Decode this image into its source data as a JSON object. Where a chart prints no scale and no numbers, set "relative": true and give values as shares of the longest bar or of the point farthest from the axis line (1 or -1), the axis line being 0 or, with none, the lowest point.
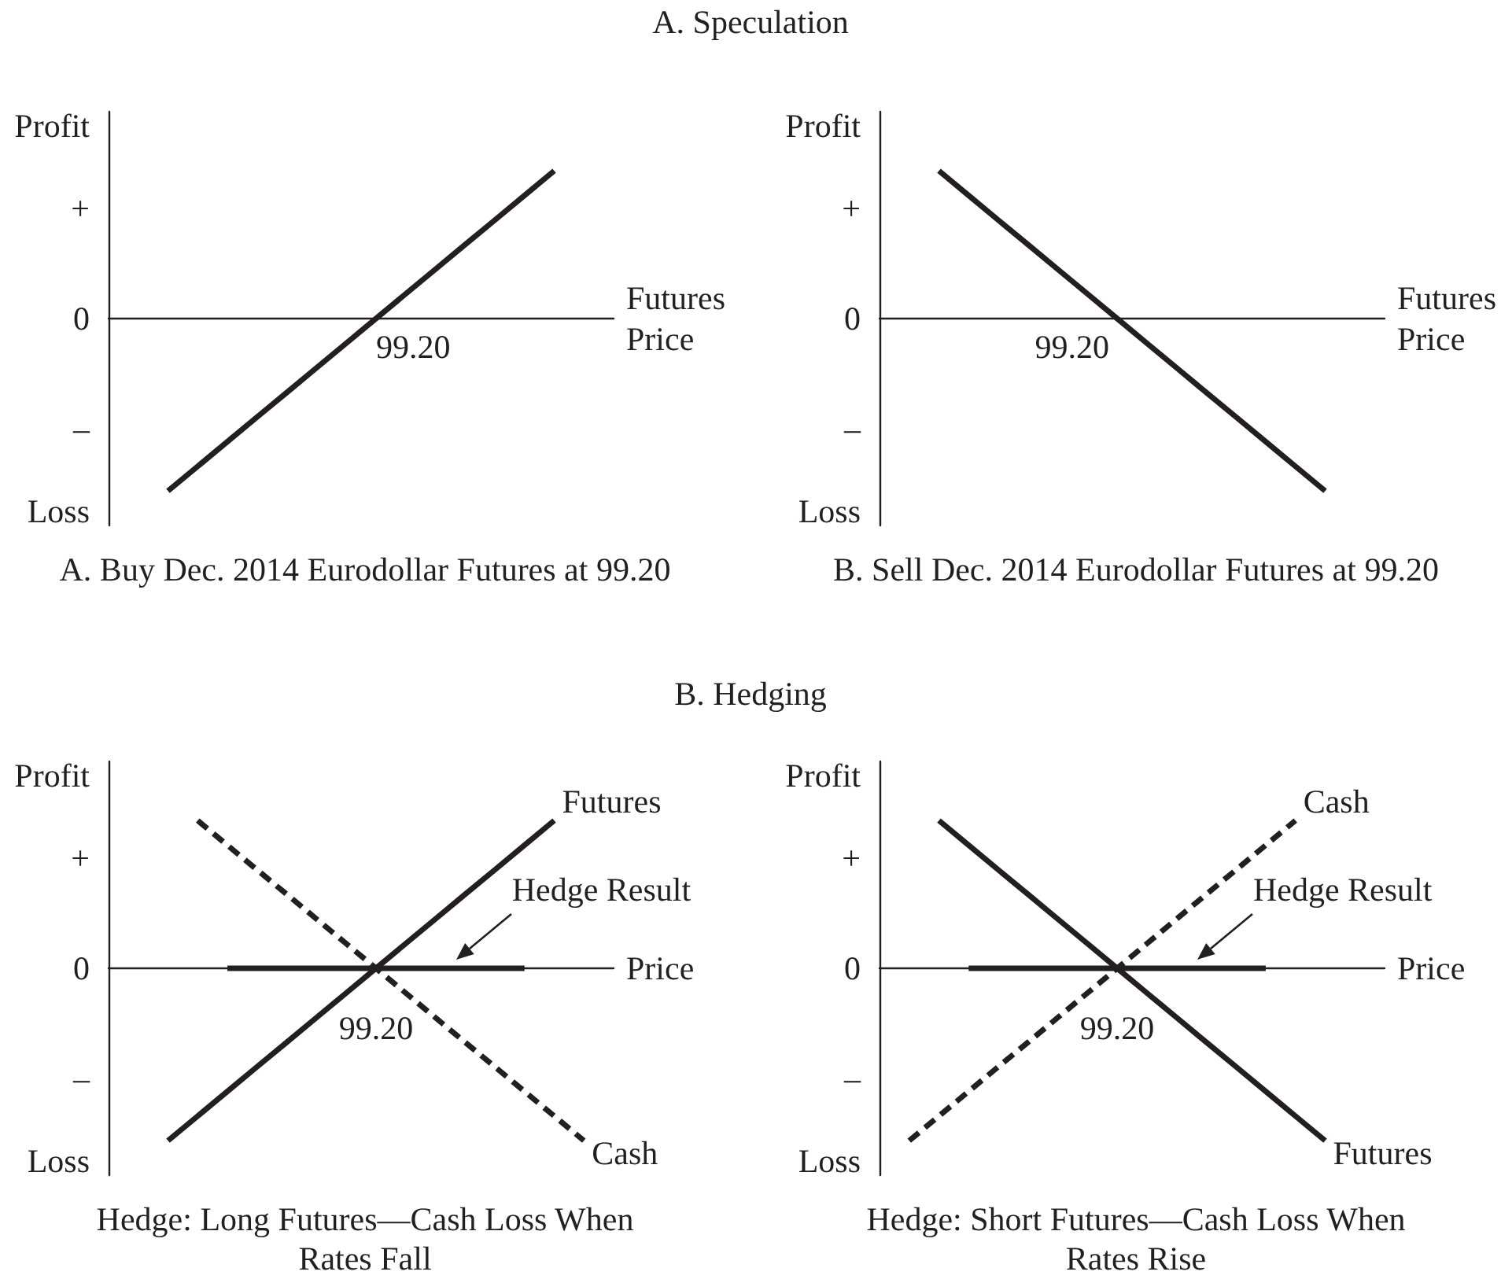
{
  "chart_data": [
    {
      "type": "other",
      "title": "A. Speculation"
    },
    {
      "type": "line",
      "title": "A. Buy Dec. 2014 Eurodollar Futures at 99.20",
      "annotations": [
        "Profit",
        "+",
        "0",
        "–",
        "Loss",
        "99.20"
      ],
      "xlabel": "Futures Price",
      "relative": true,
      "categories": [
        null,
        null,
        null,
        null,
        null,
        null,
        null,
        null,
        null,
        null,
        null,
        null,
        null,
        null,
        null,
        null,
        null,
        null
      ],
      "series": [
        {
          "color": "#231f20",
          "line_style": "solid",
          "values": [
            null,
            null,
            -1,
            -0.857,
            -0.714,
            -0.571,
            -0.429,
            -0.286,
            -0.143,
            0,
            0.143,
            0.286,
            0.429,
            0.571,
            0.714,
            0.857,
            null,
            null
          ]
        }
      ]
    },
    {
      "type": "line",
      "title": "B. Sell Dec. 2014 Eurodollar Futures at 99.20",
      "annotations": [
        "Profit",
        "+",
        "0",
        "–",
        "Loss",
        "99.20"
      ],
      "xlabel": "Futures Price",
      "relative": true,
      "categories": [
        null,
        null,
        null,
        null,
        null,
        null,
        null,
        null,
        null,
        null,
        null,
        null,
        null,
        null,
        null,
        null,
        null,
        null
      ],
      "series": [
        {
          "color": "#231f20",
          "line_style": "solid",
          "values": [
            null,
            null,
            0.857,
            0.714,
            0.571,
            0.429,
            0.286,
            0.143,
            0,
            -0.143,
            -0.286,
            -0.429,
            -0.571,
            -0.714,
            -0.857,
            -1,
            null,
            null
          ]
        }
      ]
    },
    {
      "type": "other",
      "title": "B. Hedging"
    },
    {
      "type": "line",
      "title": "Hedge: Long Futures—Cash Loss When Rates Fall",
      "annotations": [
        "Profit",
        "+",
        "0",
        "–",
        "Loss",
        "99.20"
      ],
      "xlabel": "Price",
      "relative": true,
      "categories": [
        null,
        null,
        null,
        null,
        null,
        null,
        null,
        null,
        null,
        null,
        null,
        null,
        null,
        null,
        null,
        null,
        null,
        null
      ],
      "series": [
        {
          "name": "Futures",
          "color": "#231f20",
          "line_style": "solid",
          "values": [
            null,
            null,
            -1,
            -0.857,
            -0.714,
            -0.571,
            -0.429,
            -0.286,
            -0.143,
            0,
            0.143,
            0.286,
            0.429,
            0.571,
            0.714,
            0.857,
            null,
            null
          ]
        },
        {
          "name": "Cash",
          "color": "#231f20",
          "line_style": "dashed",
          "values": [
            null,
            null,
            null,
            0.857,
            0.714,
            0.571,
            0.429,
            0.286,
            0.143,
            0,
            -0.143,
            -0.286,
            -0.429,
            -0.571,
            -0.714,
            -0.857,
            -1,
            null
          ]
        },
        {
          "name": "Hedge Result",
          "color": "#231f20",
          "line_style": "solid",
          "values": [
            null,
            null,
            null,
            null,
            0,
            0,
            0,
            0,
            0,
            0,
            0,
            0,
            0,
            0,
            0,
            null,
            null,
            null
          ]
        }
      ]
    },
    {
      "type": "line",
      "title": "Hedge: Short Futures—Cash Loss When Rates Rise",
      "annotations": [
        "Profit",
        "+",
        "0",
        "–",
        "Loss",
        "99.20"
      ],
      "xlabel": "Price",
      "relative": true,
      "categories": [
        null,
        null,
        null,
        null,
        null,
        null,
        null,
        null,
        null,
        null,
        null,
        null,
        null,
        null,
        null,
        null,
        null,
        null
      ],
      "series": [
        {
          "name": "Futures",
          "color": "#231f20",
          "line_style": "solid",
          "values": [
            null,
            null,
            0.857,
            0.714,
            0.571,
            0.429,
            0.286,
            0.143,
            0,
            -0.143,
            -0.286,
            -0.429,
            -0.571,
            -0.714,
            -0.857,
            -1,
            null,
            null
          ]
        },
        {
          "name": "Cash",
          "color": "#231f20",
          "line_style": "dashed",
          "values": [
            null,
            -1,
            -0.857,
            -0.714,
            -0.571,
            -0.429,
            -0.286,
            -0.143,
            0,
            0.143,
            0.286,
            0.429,
            0.571,
            0.714,
            0.857,
            null,
            null,
            null
          ]
        },
        {
          "name": "Hedge Result",
          "color": "#231f20",
          "line_style": "solid",
          "values": [
            null,
            null,
            null,
            0,
            0,
            0,
            0,
            0,
            0,
            0,
            0,
            0,
            0,
            0,
            null,
            null,
            null,
            null
          ]
        }
      ]
    }
  ]
}
